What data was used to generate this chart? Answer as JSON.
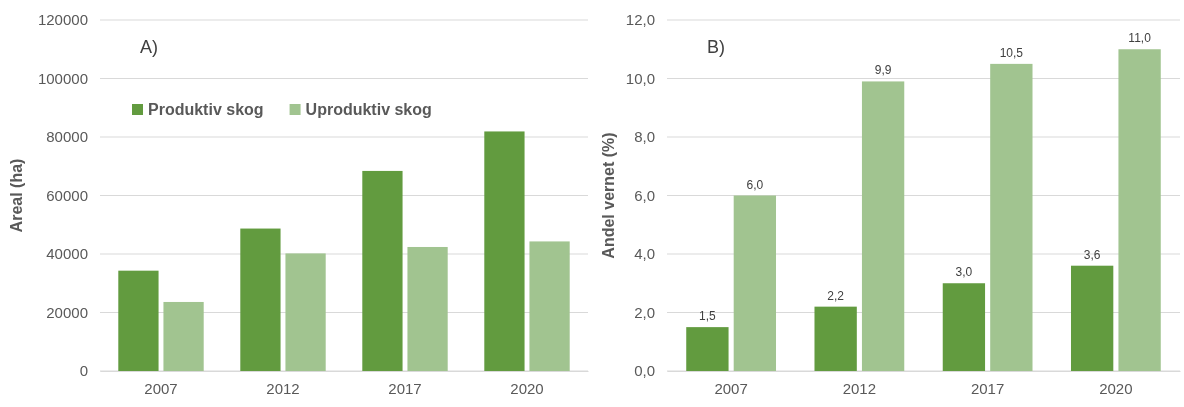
{
  "chart_data": [
    {
      "type": "bar",
      "ylabel": "Areal (ha)",
      "annotations": [
        "A)"
      ],
      "categories": [
        "2007",
        "2012",
        "2017",
        "2020"
      ],
      "series": [
        {
          "name": "Produktiv skog",
          "color": "#629b3f",
          "values": [
            34300,
            48700,
            68400,
            81900
          ]
        },
        {
          "name": "Uproduktiv skog",
          "color": "#a1c490",
          "values": [
            23600,
            40200,
            42400,
            44300
          ]
        }
      ],
      "ylim": [
        0,
        120000
      ],
      "yticks": [
        0,
        20000,
        40000,
        60000,
        80000,
        100000,
        120000
      ],
      "grid": "y",
      "legend": "top left"
    },
    {
      "type": "bar",
      "ylabel": "Andel vernet (%)",
      "annotations": [
        "B)"
      ],
      "categories": [
        "2007",
        "2012",
        "2017",
        "2020"
      ],
      "series": [
        {
          "color": "#629b3f",
          "values": [
            1.5,
            2.2,
            3.0,
            3.6
          ],
          "value_labels": [
            "1,5",
            "2,2",
            "3,0",
            "3,6"
          ]
        },
        {
          "color": "#a1c490",
          "values": [
            6.0,
            9.9,
            10.5,
            11.0
          ],
          "value_labels": [
            "6,0",
            "9,9",
            "10,5",
            "11,0"
          ]
        }
      ],
      "ylim": [
        0,
        12
      ],
      "yticks": [
        {
          "value": 0,
          "label": "0,0"
        },
        {
          "value": 2,
          "label": "2,0"
        },
        {
          "value": 4,
          "label": "4,0"
        },
        {
          "value": 6,
          "label": "6,0"
        },
        {
          "value": 8,
          "label": "8,0"
        },
        {
          "value": 10,
          "label": "10,0"
        },
        {
          "value": 12,
          "label": "12,0"
        }
      ],
      "grid": "y"
    }
  ]
}
